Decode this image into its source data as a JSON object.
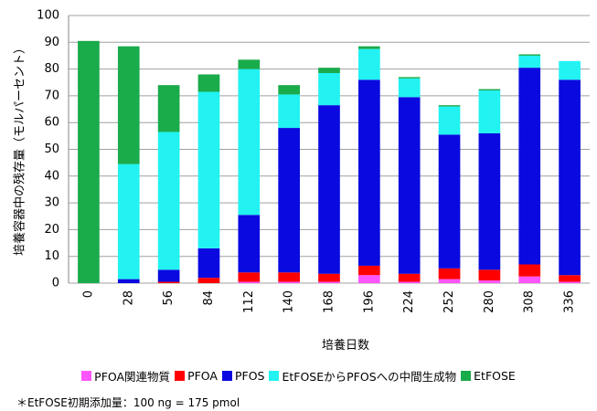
{
  "chart_data": {
    "type": "stacked-bar",
    "ylabel": "培養容器中の残存量（モルパーセント）",
    "xlabel": "培養日数",
    "note": "＊EtFOSE初期添加量：100 ng = 175 pmol",
    "categories": [
      "0",
      "28",
      "56",
      "84",
      "112",
      "140",
      "168",
      "196",
      "224",
      "252",
      "280",
      "308",
      "336"
    ],
    "series": [
      {
        "name": "PFOA関連物質",
        "color": "#ff55ff",
        "values": [
          0,
          0,
          0,
          0,
          0.5,
          0.5,
          0.5,
          3,
          0.5,
          1.5,
          1,
          2.5,
          0.5
        ]
      },
      {
        "name": "PFOA",
        "color": "#ff0000",
        "values": [
          0,
          0,
          0.5,
          2,
          3.5,
          3.5,
          3,
          3.5,
          3,
          4,
          4,
          4.5,
          2.5
        ]
      },
      {
        "name": "PFOS",
        "color": "#0a0ae0",
        "values": [
          0,
          1.5,
          4.5,
          11,
          21.5,
          54,
          63,
          69.5,
          66,
          50,
          51,
          73.5,
          73
        ]
      },
      {
        "name": "EtFOSEからPFOSへの中間生成物",
        "color": "#22f2f2",
        "values": [
          0,
          43,
          51.5,
          58.5,
          54.5,
          12.5,
          12,
          11.5,
          7,
          10.5,
          16,
          4.5,
          7
        ]
      },
      {
        "name": "EtFOSE",
        "color": "#1aab4b",
        "values": [
          90.5,
          44,
          17.5,
          6.5,
          3.5,
          3.5,
          2,
          1,
          0.5,
          0.5,
          0.5,
          0.5,
          0
        ]
      }
    ],
    "ylim": [
      0,
      100
    ],
    "yticks": [
      0,
      10,
      20,
      30,
      40,
      50,
      60,
      70,
      80,
      90,
      100
    ],
    "grid": true
  }
}
